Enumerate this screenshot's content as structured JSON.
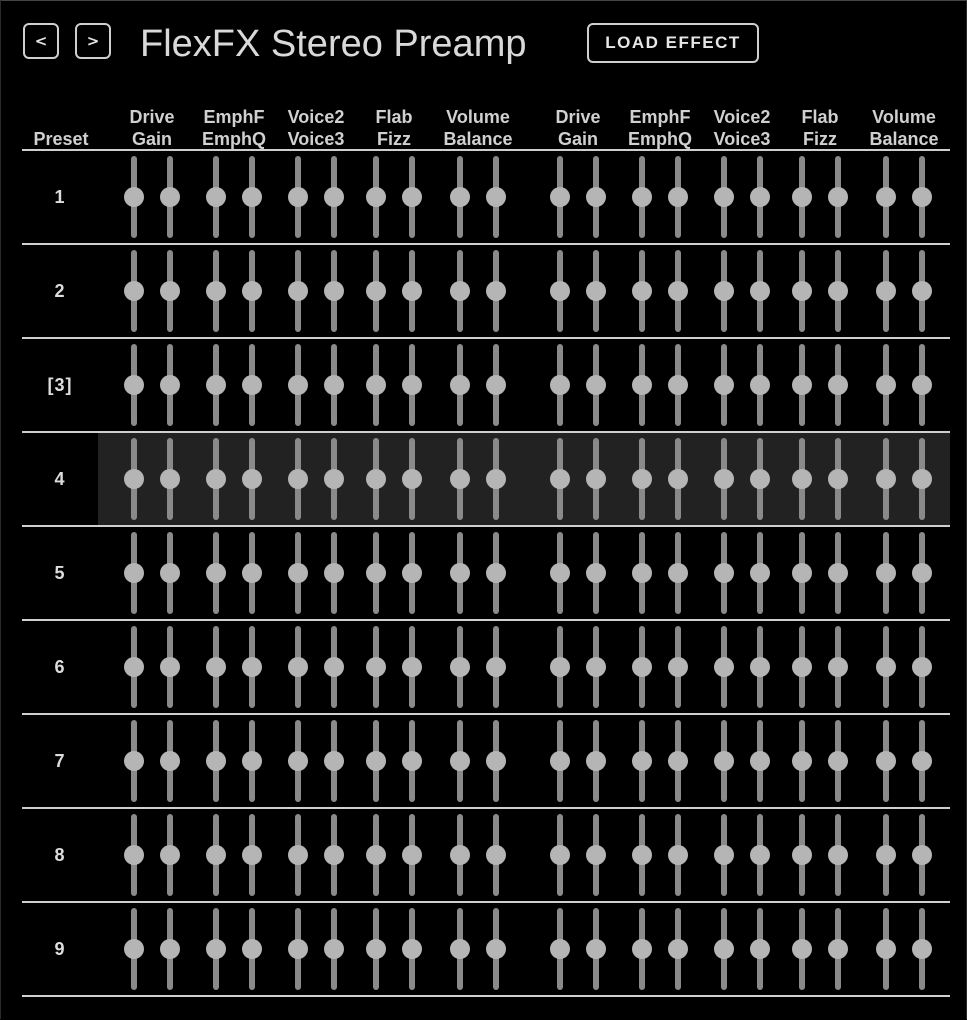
{
  "nav": {
    "prev_label": "<",
    "next_label": ">"
  },
  "title": "FlexFX Stereo Preamp",
  "load_button_label": "LOAD EFFECT",
  "preset_header": "Preset",
  "column_headers": [
    {
      "top": "Drive",
      "bottom": "Gain"
    },
    {
      "top": "EmphF",
      "bottom": "EmphQ"
    },
    {
      "top": "Voice2",
      "bottom": "Voice3"
    },
    {
      "top": "Flab",
      "bottom": "Fizz"
    },
    {
      "top": "Volume",
      "bottom": "Balance"
    },
    {
      "top": "Drive",
      "bottom": "Gain"
    },
    {
      "top": "EmphF",
      "bottom": "EmphQ"
    },
    {
      "top": "Voice2",
      "bottom": "Voice3"
    },
    {
      "top": "Flab",
      "bottom": "Fizz"
    },
    {
      "top": "Volume",
      "bottom": "Balance"
    }
  ],
  "presets": [
    {
      "label": "1"
    },
    {
      "label": "2"
    },
    {
      "label": "[3]",
      "selected": true
    },
    {
      "label": "4",
      "highlighted": true
    },
    {
      "label": "5"
    },
    {
      "label": "6"
    },
    {
      "label": "7"
    },
    {
      "label": "8"
    },
    {
      "label": "9"
    }
  ],
  "slider_value": 0.5,
  "colors": {
    "background": "#000000",
    "text": "#d8d8d8",
    "track": "#8a8a8a",
    "thumb": "#b5b5b5",
    "highlight_row": "#222222"
  }
}
